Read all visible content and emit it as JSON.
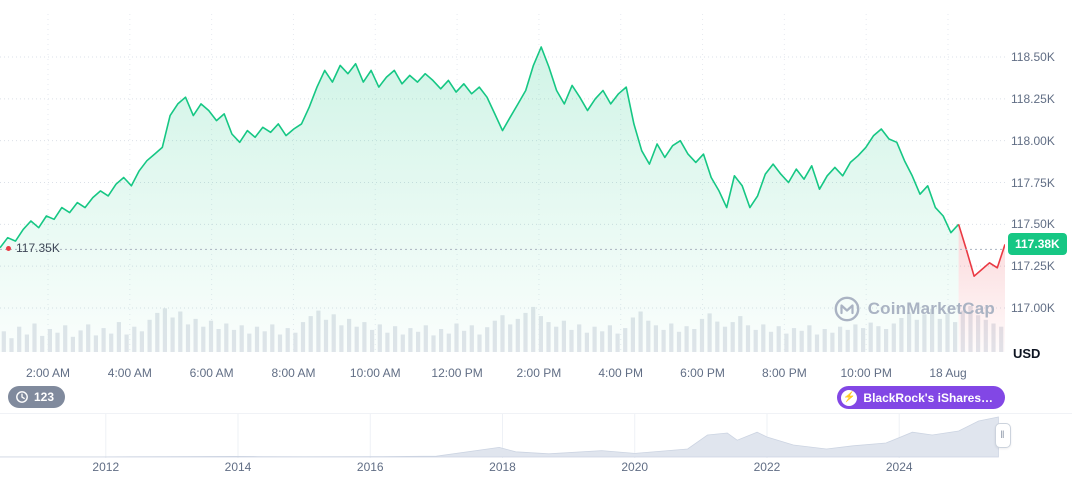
{
  "watermark": {
    "text": "CoinMarketCap"
  },
  "price_axis": {
    "ticks": [
      "118.50K",
      "118.25K",
      "118.00K",
      "117.75K",
      "117.50K",
      "117.25K",
      "117.00K"
    ],
    "unit": "USD"
  },
  "current_price": {
    "label": "117.38K",
    "color": "#16c784"
  },
  "reference_price": {
    "label": "117.35K"
  },
  "time_axis": {
    "ticks": [
      "2:00 AM",
      "4:00 AM",
      "6:00 AM",
      "8:00 AM",
      "10:00 AM",
      "12:00 PM",
      "2:00 PM",
      "4:00 PM",
      "6:00 PM",
      "8:00 PM",
      "10:00 PM",
      "18 Aug"
    ]
  },
  "badges": {
    "history_count": "123",
    "news": "BlackRock's iShares…"
  },
  "timeline": {
    "years": [
      "2012",
      "2014",
      "2016",
      "2018",
      "2020",
      "2022",
      "2024"
    ],
    "handle": "‖"
  },
  "chart_data": {
    "type": "line",
    "title": "24h price chart (USD)",
    "ylabel": "USD",
    "yticks": [
      118.5,
      118.25,
      118.0,
      117.75,
      117.5,
      117.25,
      117.0
    ],
    "ylim": [
      116.74,
      118.66
    ],
    "reference_value": 117.35,
    "current_value": 117.38,
    "line_color": "#16c784",
    "drop_color": "#ea3943",
    "red_from_index": 124,
    "values": [
      117.36,
      117.42,
      117.4,
      117.47,
      117.52,
      117.48,
      117.55,
      117.53,
      117.6,
      117.57,
      117.63,
      117.6,
      117.66,
      117.7,
      117.67,
      117.74,
      117.78,
      117.73,
      117.82,
      117.88,
      117.92,
      117.96,
      118.15,
      118.22,
      118.26,
      118.15,
      118.22,
      118.18,
      118.12,
      118.16,
      118.04,
      117.99,
      118.06,
      118.02,
      118.08,
      118.05,
      118.1,
      118.03,
      118.07,
      118.1,
      118.2,
      118.32,
      118.42,
      118.35,
      118.45,
      118.4,
      118.46,
      118.35,
      118.42,
      118.32,
      118.38,
      118.42,
      118.34,
      118.39,
      118.35,
      118.4,
      118.36,
      118.31,
      118.36,
      118.29,
      118.34,
      118.28,
      118.32,
      118.26,
      118.16,
      118.06,
      118.14,
      118.22,
      118.3,
      118.45,
      118.56,
      118.44,
      118.3,
      118.22,
      118.33,
      118.26,
      118.18,
      118.25,
      118.3,
      118.22,
      118.28,
      118.32,
      118.1,
      117.94,
      117.86,
      117.98,
      117.9,
      117.97,
      118.0,
      117.92,
      117.87,
      117.92,
      117.78,
      117.7,
      117.6,
      117.79,
      117.73,
      117.6,
      117.67,
      117.8,
      117.86,
      117.8,
      117.75,
      117.83,
      117.77,
      117.85,
      117.71,
      117.79,
      117.84,
      117.79,
      117.87,
      117.91,
      117.96,
      118.03,
      118.07,
      118.01,
      117.99,
      117.88,
      117.79,
      117.68,
      117.73,
      117.6,
      117.55,
      117.45,
      117.5,
      117.35,
      117.19,
      117.23,
      117.27,
      117.24,
      117.38
    ],
    "volumes": [
      0.45,
      0.3,
      0.55,
      0.38,
      0.62,
      0.35,
      0.5,
      0.42,
      0.58,
      0.33,
      0.47,
      0.6,
      0.36,
      0.52,
      0.4,
      0.65,
      0.38,
      0.55,
      0.45,
      0.7,
      0.85,
      0.95,
      0.75,
      0.88,
      0.6,
      0.72,
      0.55,
      0.68,
      0.5,
      0.62,
      0.48,
      0.58,
      0.4,
      0.55,
      0.45,
      0.6,
      0.38,
      0.52,
      0.42,
      0.65,
      0.78,
      0.9,
      0.7,
      0.82,
      0.58,
      0.72,
      0.55,
      0.65,
      0.48,
      0.6,
      0.42,
      0.56,
      0.38,
      0.52,
      0.44,
      0.58,
      0.36,
      0.5,
      0.4,
      0.62,
      0.46,
      0.58,
      0.38,
      0.54,
      0.68,
      0.8,
      0.6,
      0.72,
      0.85,
      0.98,
      0.78,
      0.65,
      0.55,
      0.68,
      0.48,
      0.6,
      0.42,
      0.55,
      0.45,
      0.58,
      0.4,
      0.52,
      0.75,
      0.88,
      0.68,
      0.58,
      0.48,
      0.62,
      0.44,
      0.56,
      0.5,
      0.72,
      0.84,
      0.66,
      0.55,
      0.65,
      0.78,
      0.58,
      0.48,
      0.6,
      0.44,
      0.56,
      0.4,
      0.52,
      0.46,
      0.58,
      0.38,
      0.5,
      0.42,
      0.55,
      0.48,
      0.6,
      0.52,
      0.64,
      0.56,
      0.5,
      0.62,
      0.74,
      0.86,
      0.7,
      0.82,
      0.94,
      0.72,
      0.85,
      0.65,
      0.9,
      1.0,
      0.8,
      0.7,
      0.62,
      0.55
    ],
    "timeline_series": {
      "xlim": [
        2010.4,
        2025.6
      ],
      "points": [
        [
          2010.4,
          0.002
        ],
        [
          2011,
          0.003
        ],
        [
          2011.5,
          0.002
        ],
        [
          2012,
          0.002
        ],
        [
          2013,
          0.01
        ],
        [
          2013.95,
          0.015
        ],
        [
          2014.3,
          0.01
        ],
        [
          2015,
          0.005
        ],
        [
          2016,
          0.008
        ],
        [
          2017,
          0.02
        ],
        [
          2017.95,
          0.24
        ],
        [
          2018.2,
          0.13
        ],
        [
          2018.7,
          0.08
        ],
        [
          2019.5,
          0.16
        ],
        [
          2020,
          0.09
        ],
        [
          2020.8,
          0.2
        ],
        [
          2021.1,
          0.55
        ],
        [
          2021.4,
          0.6
        ],
        [
          2021.55,
          0.42
        ],
        [
          2021.85,
          0.62
        ],
        [
          2022.0,
          0.5
        ],
        [
          2022.4,
          0.3
        ],
        [
          2022.9,
          0.2
        ],
        [
          2023.3,
          0.28
        ],
        [
          2023.8,
          0.35
        ],
        [
          2024.2,
          0.62
        ],
        [
          2024.5,
          0.55
        ],
        [
          2024.9,
          0.65
        ],
        [
          2025.2,
          0.9
        ],
        [
          2025.5,
          1.0
        ]
      ]
    }
  }
}
